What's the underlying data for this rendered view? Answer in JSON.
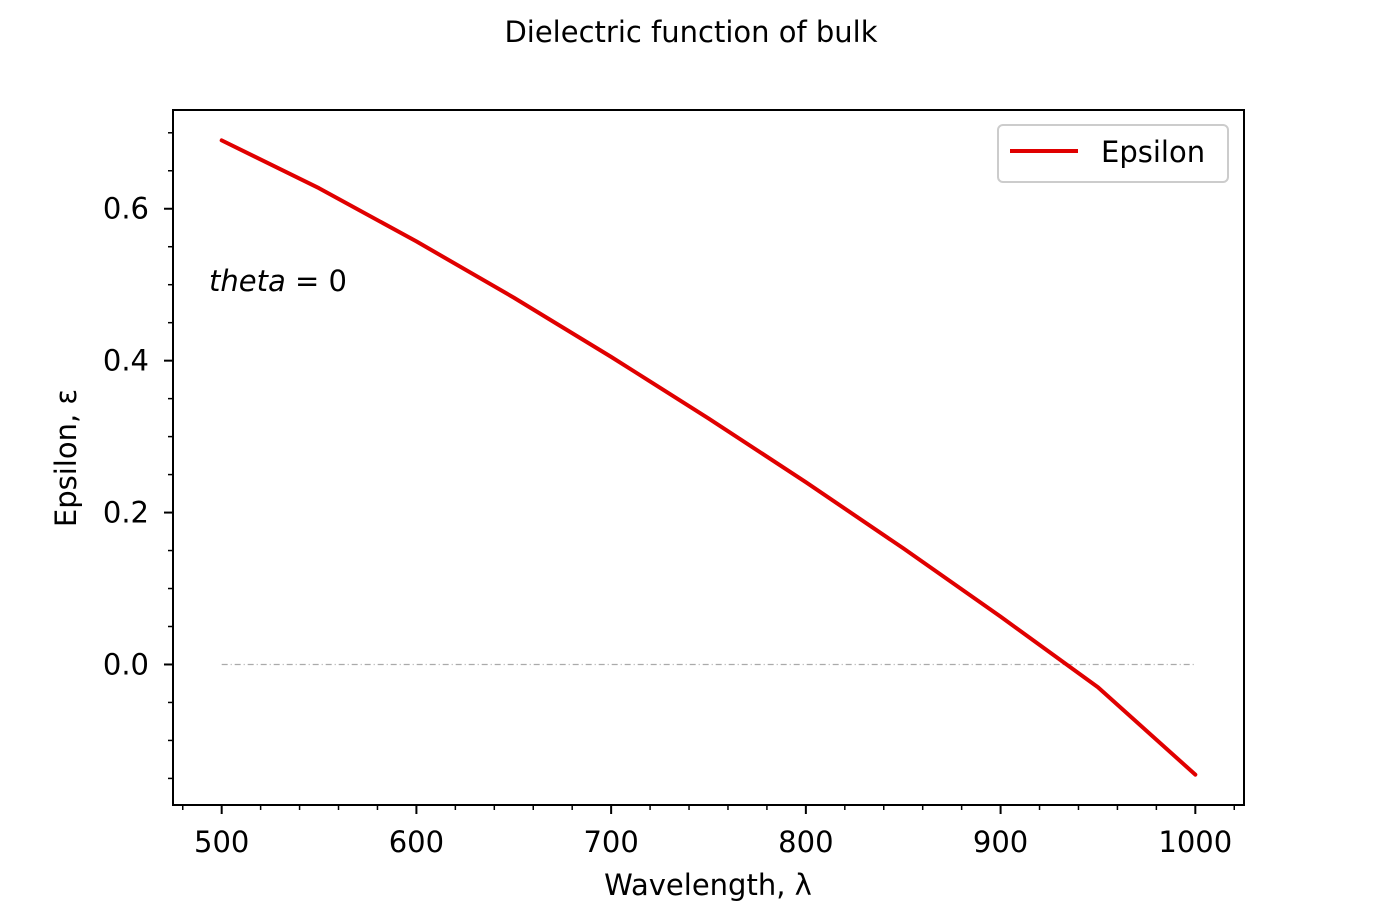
{
  "chart_data": {
    "type": "line",
    "title": "Dielectric function of bulk",
    "xlabel": "Wavelength, λ",
    "ylabel": "Epsilon, ε",
    "xlim": [
      475,
      1025
    ],
    "ylim": [
      -0.185,
      0.73
    ],
    "xticks": [
      500,
      600,
      700,
      800,
      900,
      1000
    ],
    "xtick_labels": [
      "500",
      "600",
      "700",
      "800",
      "900",
      "1000"
    ],
    "x_minor_step": 20,
    "yticks": [
      0.0,
      0.2,
      0.4,
      0.6
    ],
    "ytick_labels": [
      "0.0",
      "0.2",
      "0.4",
      "0.6"
    ],
    "y_minor_step": 0.05,
    "grid": false,
    "legend": {
      "placement": "top-right",
      "entries": [
        {
          "label": "Epsilon",
          "color": "#e00000"
        }
      ]
    },
    "annotation": {
      "italic_part": "theta",
      "rest": " = 0",
      "x": 493,
      "y": 0.5
    },
    "reference_line": {
      "y": 0.0,
      "x_start": 500,
      "x_end": 1000,
      "color": "#aaaaaa",
      "style": "dash-dot"
    },
    "series": [
      {
        "name": "Epsilon",
        "color": "#e00000",
        "x": [
          500,
          550,
          600,
          650,
          700,
          750,
          800,
          850,
          900,
          950,
          1000
        ],
        "y": [
          0.69,
          0.627,
          0.557,
          0.483,
          0.405,
          0.324,
          0.24,
          0.153,
          0.063,
          -0.03,
          -0.145
        ]
      }
    ]
  }
}
